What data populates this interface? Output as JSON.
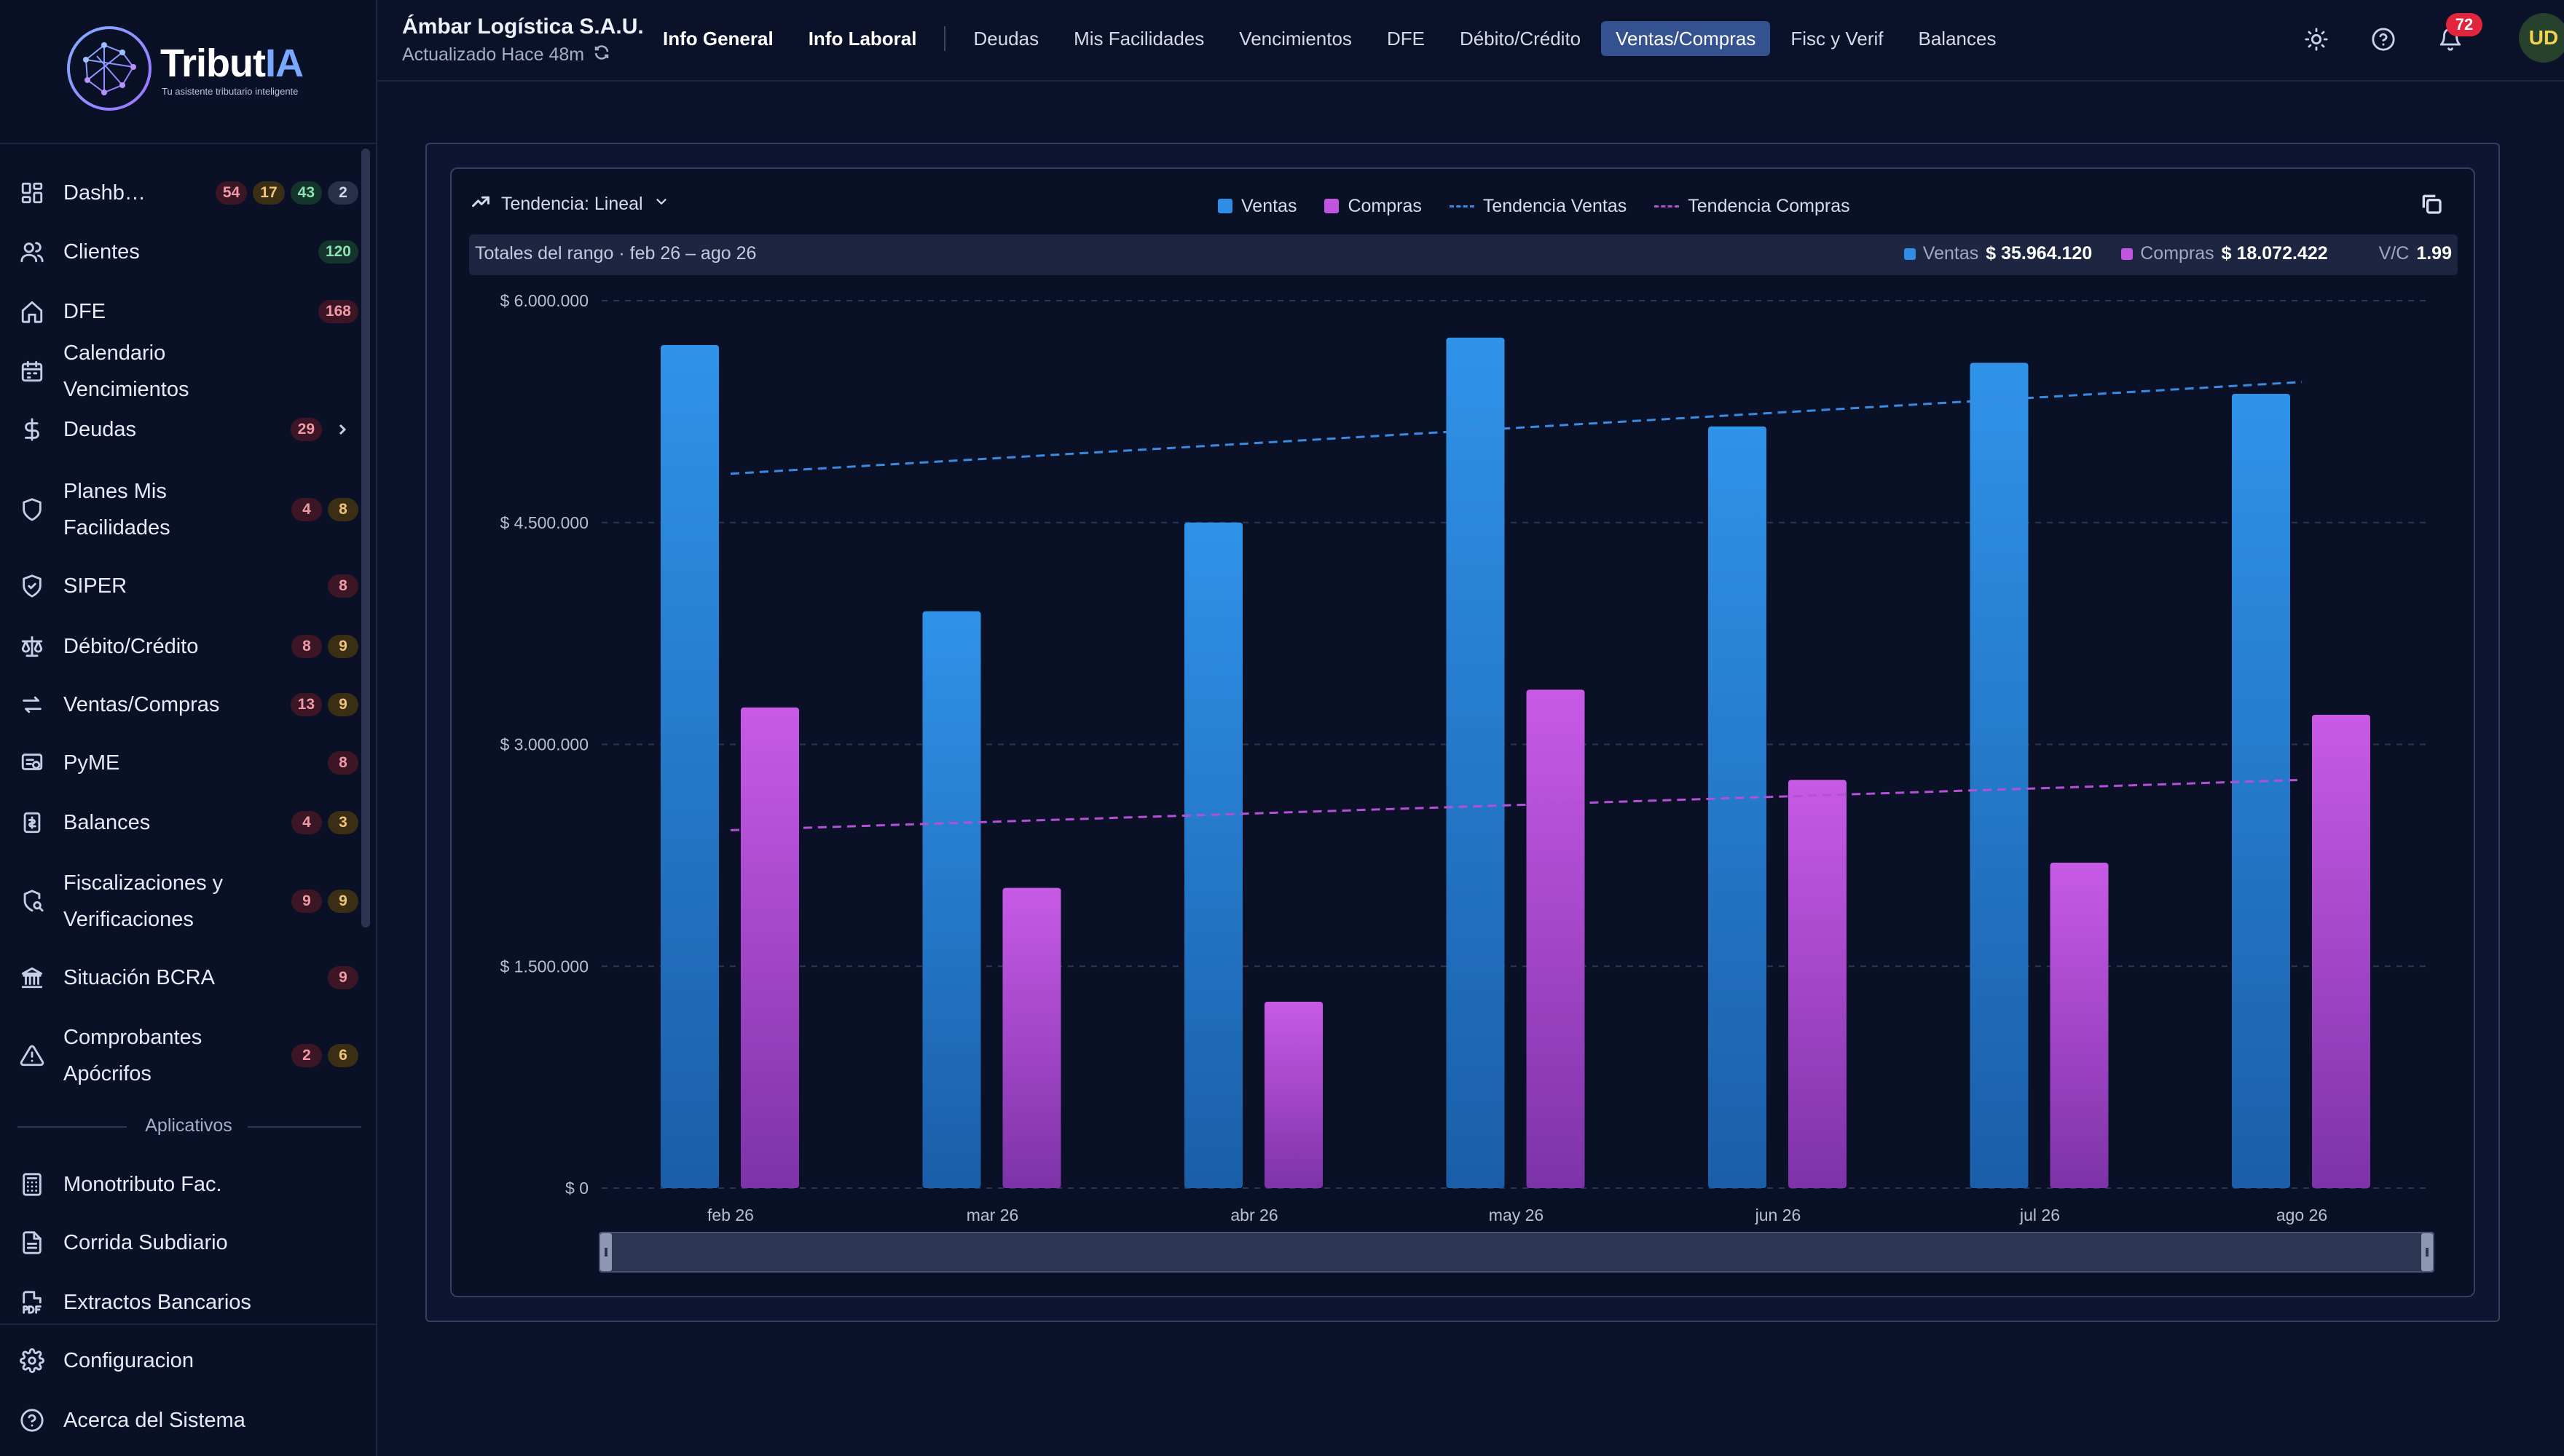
{
  "brand": {
    "name": "Tribut",
    "name_accent": "IA",
    "tagline": "Tu asistente tributario inteligente"
  },
  "sidebar": {
    "items": [
      {
        "label": "Dashb…",
        "icon": "dashboard-icon",
        "badges": [
          {
            "v": "54",
            "c": "red"
          },
          {
            "v": "17",
            "c": "amber"
          },
          {
            "v": "43",
            "c": "green"
          },
          {
            "v": "2",
            "c": "gray"
          }
        ]
      },
      {
        "label": "Clientes",
        "icon": "users-icon",
        "badges": [
          {
            "v": "120",
            "c": "green"
          }
        ]
      },
      {
        "label": "DFE",
        "icon": "home-icon",
        "badges": [
          {
            "v": "168",
            "c": "red"
          }
        ]
      },
      {
        "label": "Calendario Vencimientos",
        "icon": "calendar-icon",
        "badges": []
      },
      {
        "label": "Deudas",
        "icon": "dollar-icon",
        "badges": [
          {
            "v": "29",
            "c": "red"
          }
        ],
        "chevron": true
      },
      {
        "label": "Planes Mis Facilidades",
        "icon": "shield-icon",
        "badges": [
          {
            "v": "4",
            "c": "red"
          },
          {
            "v": "8",
            "c": "amber"
          }
        ]
      },
      {
        "label": "SIPER",
        "icon": "shield-check-icon",
        "badges": [
          {
            "v": "8",
            "c": "red"
          }
        ]
      },
      {
        "label": "Débito/Crédito",
        "icon": "scale-icon",
        "badges": [
          {
            "v": "8",
            "c": "red"
          },
          {
            "v": "9",
            "c": "amber"
          }
        ]
      },
      {
        "label": "Ventas/Compras",
        "icon": "arrows-icon",
        "badges": [
          {
            "v": "13",
            "c": "red"
          },
          {
            "v": "9",
            "c": "amber"
          }
        ]
      },
      {
        "label": "PyME",
        "icon": "pyme-icon",
        "badges": [
          {
            "v": "8",
            "c": "red"
          }
        ]
      },
      {
        "label": "Balances",
        "icon": "balances-icon",
        "badges": [
          {
            "v": "4",
            "c": "red"
          },
          {
            "v": "3",
            "c": "amber"
          }
        ]
      },
      {
        "label": "Fiscalizaciones y Verificaciones",
        "icon": "search-shield-icon",
        "badges": [
          {
            "v": "9",
            "c": "red"
          },
          {
            "v": "9",
            "c": "amber"
          }
        ]
      },
      {
        "label": "Situación BCRA",
        "icon": "bank-icon",
        "badges": [
          {
            "v": "9",
            "c": "red"
          }
        ]
      },
      {
        "label": "Comprobantes Apócrifos",
        "icon": "warning-icon",
        "badges": [
          {
            "v": "2",
            "c": "red"
          },
          {
            "v": "6",
            "c": "amber"
          }
        ]
      }
    ],
    "section_apps": "Aplicativos",
    "apps": [
      {
        "label": "Monotributo Fac.",
        "icon": "calculator-icon"
      },
      {
        "label": "Corrida Subdiario",
        "icon": "file-icon"
      },
      {
        "label": "Extractos Bancarios",
        "icon": "pdf-icon"
      }
    ],
    "footer": [
      {
        "label": "Configuracion",
        "icon": "gear-icon"
      },
      {
        "label": "Acerca del Sistema",
        "icon": "help-icon"
      }
    ]
  },
  "header": {
    "company": "Ámbar Logística S.A.U.",
    "updated": "Actualizado Hace 48m",
    "tabs": [
      {
        "label": "Info General",
        "bold": true
      },
      {
        "label": "Info Laboral",
        "bold": true,
        "sep_after": true
      },
      {
        "label": "Deudas"
      },
      {
        "label": "Mis Facilidades"
      },
      {
        "label": "Vencimientos"
      },
      {
        "label": "DFE"
      },
      {
        "label": "Débito/Crédito"
      },
      {
        "label": "Ventas/Compras",
        "active": true
      },
      {
        "label": "Fisc y Verif"
      },
      {
        "label": "Balances"
      }
    ],
    "notifications": "72",
    "avatar": "UD"
  },
  "chart_panel": {
    "trend_label": "Tendencia: Lineal",
    "legend": {
      "ventas": "Ventas",
      "compras": "Compras",
      "trend_ventas": "Tendencia Ventas",
      "trend_compras": "Tendencia Compras"
    },
    "totals_label": "Totales del rango · feb 26 – ago 26",
    "totals": {
      "ventas_label": "Ventas",
      "ventas_value": "$ 35.964.120",
      "compras_label": "Compras",
      "compras_value": "$ 18.072.422",
      "ratio_label": "V/C",
      "ratio_value": "1.99"
    }
  },
  "colors": {
    "ventas": "#2e8ee6",
    "compras": "#c255e0",
    "trend_ventas": "#3a8be0",
    "trend_compras": "#b450d6",
    "accent": "#34528f"
  },
  "chart_data": {
    "type": "bar",
    "categories": [
      "feb 26",
      "mar 26",
      "abr 26",
      "may 26",
      "jun 26",
      "jul 26",
      "ago 26"
    ],
    "series": [
      {
        "name": "Ventas",
        "values": [
          5700000,
          3900000,
          4500000,
          5750000,
          5150000,
          5580000,
          5370000
        ]
      },
      {
        "name": "Compras",
        "values": [
          3250000,
          2030000,
          1260000,
          3370000,
          2760000,
          2200000,
          3200000
        ]
      }
    ],
    "trends": [
      {
        "name": "Tendencia Ventas",
        "start": 4830000,
        "end": 5450000
      },
      {
        "name": "Tendencia Compras",
        "start": 2420000,
        "end": 2760000
      }
    ],
    "yticks": [
      "$ 0",
      "$ 1.500.000",
      "$ 3.000.000",
      "$ 4.500.000",
      "$ 6.000.000"
    ],
    "ytick_values": [
      0,
      1500000,
      3000000,
      4500000,
      6000000
    ],
    "ylim": [
      0,
      6000000
    ],
    "grid": true,
    "legend_position": "top"
  }
}
